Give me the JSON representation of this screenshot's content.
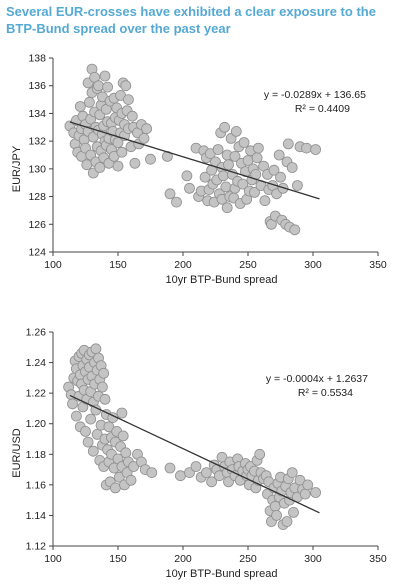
{
  "title": "Several EUR-crosses have exhibited a clear exposure to the BTP-Bund spread over the past year",
  "style": {
    "title_color": "#55a9d4",
    "marker_fill": "#c4c4c4",
    "marker_stroke": "#8f8f8f",
    "trend_color": "#333333"
  },
  "chart_data": [
    {
      "type": "scatter",
      "xlabel": "10yr BTP-Bund spread",
      "ylabel": "EUR/JPY",
      "xlim": [
        100,
        350
      ],
      "ylim": [
        124,
        138
      ],
      "xticks": [
        100,
        150,
        200,
        250,
        300,
        350
      ],
      "yticks": [
        124,
        126,
        128,
        130,
        132,
        134,
        136,
        138
      ],
      "trendline": {
        "slope": -0.0289,
        "intercept": 136.65,
        "x_range": [
          113,
          305
        ]
      },
      "equation": "y = -0.0289x + 136.65",
      "r_squared": "R² = 0.4409",
      "grid": false,
      "points": [
        [
          113,
          133.1
        ],
        [
          116,
          132.6
        ],
        [
          117,
          131.8
        ],
        [
          118,
          133.5
        ],
        [
          119,
          131.2
        ],
        [
          120,
          132.4
        ],
        [
          121,
          134.5
        ],
        [
          122,
          132.9
        ],
        [
          122,
          130.9
        ],
        [
          123,
          133.8
        ],
        [
          124,
          132.1
        ],
        [
          125,
          131.5
        ],
        [
          125,
          133.2
        ],
        [
          126,
          130.3
        ],
        [
          127,
          136.2
        ],
        [
          127,
          132.7
        ],
        [
          128,
          134.8
        ],
        [
          129,
          131.0
        ],
        [
          129,
          133.6
        ],
        [
          130,
          137.2
        ],
        [
          130,
          135.5
        ],
        [
          131,
          129.7
        ],
        [
          131,
          132.3
        ],
        [
          132,
          136.6
        ],
        [
          132,
          134.1
        ],
        [
          133,
          130.5
        ],
        [
          133,
          133.0
        ],
        [
          134,
          135.8
        ],
        [
          134,
          131.6
        ],
        [
          135,
          132.8
        ],
        [
          135,
          136.0
        ],
        [
          136,
          130.1
        ],
        [
          136,
          133.9
        ],
        [
          137,
          134.6
        ],
        [
          137,
          131.3
        ],
        [
          138,
          132.5
        ],
        [
          138,
          135.2
        ],
        [
          139,
          133.1
        ],
        [
          139,
          130.8
        ],
        [
          140,
          136.7
        ],
        [
          140,
          132.0
        ],
        [
          141,
          134.3
        ],
        [
          141,
          131.7
        ],
        [
          142,
          133.4
        ],
        [
          142,
          135.9
        ],
        [
          143,
          132.2
        ],
        [
          143,
          130.4
        ],
        [
          144,
          134.9
        ],
        [
          145,
          133.3
        ],
        [
          145,
          131.4
        ],
        [
          146,
          132.7
        ],
        [
          147,
          135.1
        ],
        [
          147,
          130.9
        ],
        [
          148,
          133.7
        ],
        [
          148,
          132.1
        ],
        [
          149,
          134.4
        ],
        [
          150,
          131.9
        ],
        [
          150,
          130.2
        ],
        [
          151,
          133.5
        ],
        [
          152,
          135.3
        ],
        [
          152,
          132.6
        ],
        [
          153,
          134.0
        ],
        [
          153,
          131.2
        ],
        [
          154,
          136.2
        ],
        [
          155,
          133.2
        ],
        [
          155,
          132.4
        ],
        [
          156,
          136.0
        ],
        [
          157,
          134.2
        ],
        [
          158,
          132.9
        ],
        [
          158,
          135.0
        ],
        [
          160,
          131.6
        ],
        [
          161,
          133.8
        ],
        [
          162,
          133.0
        ],
        [
          163,
          130.4
        ],
        [
          165,
          132.6
        ],
        [
          166,
          131.8
        ],
        [
          168,
          133.2
        ],
        [
          170,
          132.2
        ],
        [
          172,
          132.9
        ],
        [
          175,
          130.7
        ],
        [
          188,
          130.9
        ],
        [
          190,
          128.2
        ],
        [
          195,
          127.6
        ],
        [
          203,
          129.5
        ],
        [
          205,
          128.6
        ],
        [
          210,
          131.5
        ],
        [
          212,
          128.0
        ],
        [
          214,
          128.4
        ],
        [
          216,
          131.3
        ],
        [
          217,
          129.4
        ],
        [
          218,
          130.8
        ],
        [
          219,
          127.7
        ],
        [
          220,
          128.5
        ],
        [
          221,
          131.1
        ],
        [
          222,
          129.9
        ],
        [
          223,
          128.9
        ],
        [
          224,
          127.6
        ],
        [
          225,
          130.5
        ],
        [
          226,
          129.2
        ],
        [
          227,
          131.4
        ],
        [
          228,
          128.2
        ],
        [
          229,
          132.6
        ],
        [
          230,
          130.1
        ],
        [
          230,
          127.8
        ],
        [
          231,
          129.5
        ],
        [
          232,
          133.0
        ],
        [
          233,
          128.7
        ],
        [
          234,
          131.0
        ],
        [
          234,
          127.2
        ],
        [
          235,
          130.3
        ],
        [
          236,
          128.0
        ],
        [
          237,
          132.2
        ],
        [
          238,
          129.6
        ],
        [
          239,
          127.9
        ],
        [
          240,
          130.9
        ],
        [
          240,
          128.6
        ],
        [
          241,
          132.7
        ],
        [
          242,
          129.1
        ],
        [
          243,
          131.6
        ],
        [
          244,
          127.5
        ],
        [
          245,
          130.4
        ],
        [
          246,
          128.9
        ],
        [
          247,
          131.9
        ],
        [
          248,
          129.8
        ],
        [
          249,
          127.8
        ],
        [
          250,
          130.6
        ],
        [
          251,
          128.4
        ],
        [
          252,
          131.3
        ],
        [
          253,
          129.2
        ],
        [
          254,
          130.0
        ],
        [
          255,
          128.3
        ],
        [
          256,
          129.6
        ],
        [
          257,
          130.8
        ],
        [
          258,
          131.5
        ],
        [
          260,
          128.8
        ],
        [
          262,
          130.2
        ],
        [
          263,
          127.7
        ],
        [
          265,
          129.6
        ],
        [
          266,
          128.5
        ],
        [
          267,
          126.2
        ],
        [
          268,
          126.0
        ],
        [
          269,
          128.8
        ],
        [
          270,
          129.9
        ],
        [
          271,
          126.6
        ],
        [
          272,
          128.2
        ],
        [
          274,
          131.0
        ],
        [
          275,
          129.4
        ],
        [
          276,
          126.3
        ],
        [
          277,
          128.6
        ],
        [
          279,
          126.0
        ],
        [
          280,
          130.5
        ],
        [
          281,
          131.8
        ],
        [
          282,
          125.8
        ],
        [
          284,
          130.1
        ],
        [
          286,
          125.6
        ],
        [
          288,
          128.8
        ],
        [
          290,
          131.6
        ],
        [
          295,
          131.5
        ],
        [
          302,
          131.4
        ]
      ]
    },
    {
      "type": "scatter",
      "xlabel": "10yr  BTP-Bund spread",
      "ylabel": "EUR/USD",
      "xlim": [
        100,
        350
      ],
      "ylim": [
        1.12,
        1.26
      ],
      "xticks": [
        100,
        150,
        200,
        250,
        300,
        350
      ],
      "yticks": [
        "1.12",
        "1.14",
        "1.16",
        "1.18",
        "1.20",
        "1.22",
        "1.24",
        "1.26"
      ],
      "trendline": {
        "slope": -0.0004,
        "intercept": 1.2637,
        "x_range": [
          113,
          305
        ]
      },
      "equation": "y = -0.0004x + 1.2637",
      "r_squared": "R² = 0.5534",
      "grid": false,
      "points": [
        [
          112,
          1.224
        ],
        [
          114,
          1.219
        ],
        [
          115,
          1.213
        ],
        [
          116,
          1.23
        ],
        [
          117,
          1.241
        ],
        [
          118,
          1.236
        ],
        [
          118,
          1.205
        ],
        [
          119,
          1.228
        ],
        [
          120,
          1.218
        ],
        [
          120,
          1.244
        ],
        [
          121,
          1.232
        ],
        [
          121,
          1.198
        ],
        [
          122,
          1.246
        ],
        [
          122,
          1.226
        ],
        [
          123,
          1.238
        ],
        [
          123,
          1.211
        ],
        [
          124,
          1.248
        ],
        [
          124,
          1.222
        ],
        [
          125,
          1.234
        ],
        [
          125,
          1.195
        ],
        [
          126,
          1.242
        ],
        [
          126,
          1.216
        ],
        [
          127,
          1.229
        ],
        [
          127,
          1.188
        ],
        [
          128,
          1.245
        ],
        [
          128,
          1.237
        ],
        [
          129,
          1.221
        ],
        [
          129,
          1.203
        ],
        [
          130,
          1.247
        ],
        [
          130,
          1.231
        ],
        [
          131,
          1.214
        ],
        [
          131,
          1.182
        ],
        [
          132,
          1.24
        ],
        [
          132,
          1.226
        ],
        [
          133,
          1.249
        ],
        [
          133,
          1.209
        ],
        [
          134,
          1.235
        ],
        [
          134,
          1.193
        ],
        [
          135,
          1.243
        ],
        [
          135,
          1.218
        ],
        [
          136,
          1.229
        ],
        [
          136,
          1.176
        ],
        [
          137,
          1.238
        ],
        [
          137,
          1.199
        ],
        [
          138,
          1.224
        ],
        [
          138,
          1.186
        ],
        [
          139,
          1.233
        ],
        [
          139,
          1.172
        ],
        [
          140,
          1.216
        ],
        [
          140,
          1.19
        ],
        [
          141,
          1.206
        ],
        [
          141,
          1.16
        ],
        [
          142,
          1.183
        ],
        [
          143,
          1.198
        ],
        [
          143,
          1.175
        ],
        [
          144,
          1.162
        ],
        [
          145,
          1.191
        ],
        [
          145,
          1.18
        ],
        [
          146,
          1.204
        ],
        [
          147,
          1.171
        ],
        [
          148,
          1.188
        ],
        [
          148,
          1.158
        ],
        [
          149,
          1.195
        ],
        [
          150,
          1.177
        ],
        [
          151,
          1.165
        ],
        [
          152,
          1.185
        ],
        [
          153,
          1.207
        ],
        [
          153,
          1.172
        ],
        [
          154,
          1.192
        ],
        [
          155,
          1.16
        ],
        [
          156,
          1.181
        ],
        [
          157,
          1.168
        ],
        [
          158,
          1.175
        ],
        [
          160,
          1.163
        ],
        [
          162,
          1.172
        ],
        [
          165,
          1.18
        ],
        [
          168,
          1.175
        ],
        [
          171,
          1.17
        ],
        [
          176,
          1.168
        ],
        [
          190,
          1.171
        ],
        [
          198,
          1.166
        ],
        [
          205,
          1.168
        ],
        [
          210,
          1.172
        ],
        [
          214,
          1.165
        ],
        [
          218,
          1.168
        ],
        [
          222,
          1.162
        ],
        [
          224,
          1.173
        ],
        [
          226,
          1.17
        ],
        [
          228,
          1.166
        ],
        [
          230,
          1.178
        ],
        [
          232,
          1.172
        ],
        [
          234,
          1.168
        ],
        [
          235,
          1.162
        ],
        [
          236,
          1.175
        ],
        [
          238,
          1.17
        ],
        [
          240,
          1.166
        ],
        [
          242,
          1.177
        ],
        [
          243,
          1.172
        ],
        [
          244,
          1.163
        ],
        [
          246,
          1.169
        ],
        [
          248,
          1.174
        ],
        [
          249,
          1.166
        ],
        [
          250,
          1.17
        ],
        [
          251,
          1.16
        ],
        [
          252,
          1.172
        ],
        [
          253,
          1.166
        ],
        [
          255,
          1.169
        ],
        [
          256,
          1.158
        ],
        [
          257,
          1.176
        ],
        [
          258,
          1.163
        ],
        [
          259,
          1.18
        ],
        [
          260,
          1.168
        ],
        [
          262,
          1.164
        ],
        [
          264,
          1.166
        ],
        [
          265,
          1.154
        ],
        [
          266,
          1.162
        ],
        [
          267,
          1.143
        ],
        [
          268,
          1.136
        ],
        [
          269,
          1.15
        ],
        [
          270,
          1.158
        ],
        [
          271,
          1.146
        ],
        [
          272,
          1.14
        ],
        [
          273,
          1.161
        ],
        [
          274,
          1.152
        ],
        [
          275,
          1.165
        ],
        [
          276,
          1.156
        ],
        [
          277,
          1.134
        ],
        [
          278,
          1.148
        ],
        [
          279,
          1.159
        ],
        [
          280,
          1.136
        ],
        [
          281,
          1.164
        ],
        [
          282,
          1.15
        ],
        [
          283,
          1.155
        ],
        [
          284,
          1.168
        ],
        [
          285,
          1.142
        ],
        [
          286,
          1.158
        ],
        [
          288,
          1.152
        ],
        [
          290,
          1.163
        ],
        [
          292,
          1.157
        ],
        [
          294,
          1.154
        ],
        [
          296,
          1.16
        ],
        [
          302,
          1.155
        ]
      ]
    }
  ]
}
